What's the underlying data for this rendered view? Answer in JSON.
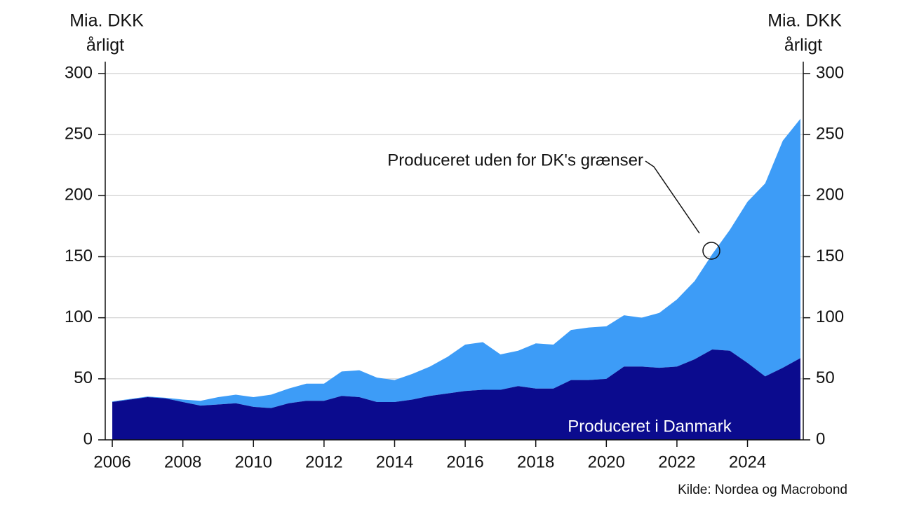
{
  "chart_data": {
    "type": "stacked_area",
    "y_label": [
      "Mia. DKK",
      "årligt"
    ],
    "y2_label": [
      "Mia. DKK",
      "årligt"
    ],
    "source": "Kilde: Nordea og Macrobond",
    "x": [
      2006.0,
      2006.5,
      2007.0,
      2007.5,
      2008.0,
      2008.5,
      2009.0,
      2009.5,
      2010.0,
      2010.5,
      2011.0,
      2011.5,
      2012.0,
      2012.5,
      2013.0,
      2013.5,
      2014.0,
      2014.5,
      2015.0,
      2015.5,
      2016.0,
      2016.5,
      2017.0,
      2017.5,
      2018.0,
      2018.5,
      2019.0,
      2019.5,
      2020.0,
      2020.5,
      2021.0,
      2021.5,
      2022.0,
      2022.5,
      2023.0,
      2023.5,
      2024.0,
      2024.5,
      2025.0,
      2025.5
    ],
    "series": [
      {
        "name": "Produceret i Danmark",
        "color": "#0b0b8e",
        "values": [
          31,
          33,
          35,
          34,
          31,
          28,
          29,
          30,
          27,
          26,
          30,
          32,
          32,
          36,
          35,
          31,
          31,
          33,
          36,
          38,
          40,
          41,
          41,
          44,
          42,
          42,
          49,
          49,
          50,
          60,
          60,
          59,
          60,
          66,
          74,
          73,
          63,
          52,
          59,
          67
        ]
      },
      {
        "name": "Produceret uden for DK's grænser",
        "color": "#3d9cf7",
        "values": [
          0.5,
          0.5,
          0.5,
          0.5,
          2,
          4,
          6,
          7,
          8,
          11,
          12,
          14,
          14,
          20,
          22,
          20,
          18,
          21,
          24,
          30,
          38,
          39,
          29,
          29,
          37,
          36,
          41,
          43,
          43,
          42,
          40,
          45,
          55,
          64,
          78,
          99,
          132,
          158,
          186,
          196
        ]
      }
    ],
    "xlim": [
      2005.8,
      2025.58
    ],
    "xticks": [
      2006,
      2008,
      2010,
      2012,
      2014,
      2016,
      2018,
      2020,
      2022,
      2024
    ],
    "ylim": [
      0,
      300
    ],
    "yticks": [
      0,
      50,
      100,
      150,
      200,
      250,
      300
    ],
    "y2lim": [
      0,
      300
    ],
    "y2ticks": [
      0,
      50,
      100,
      150,
      200,
      250,
      300
    ],
    "grid": true
  }
}
